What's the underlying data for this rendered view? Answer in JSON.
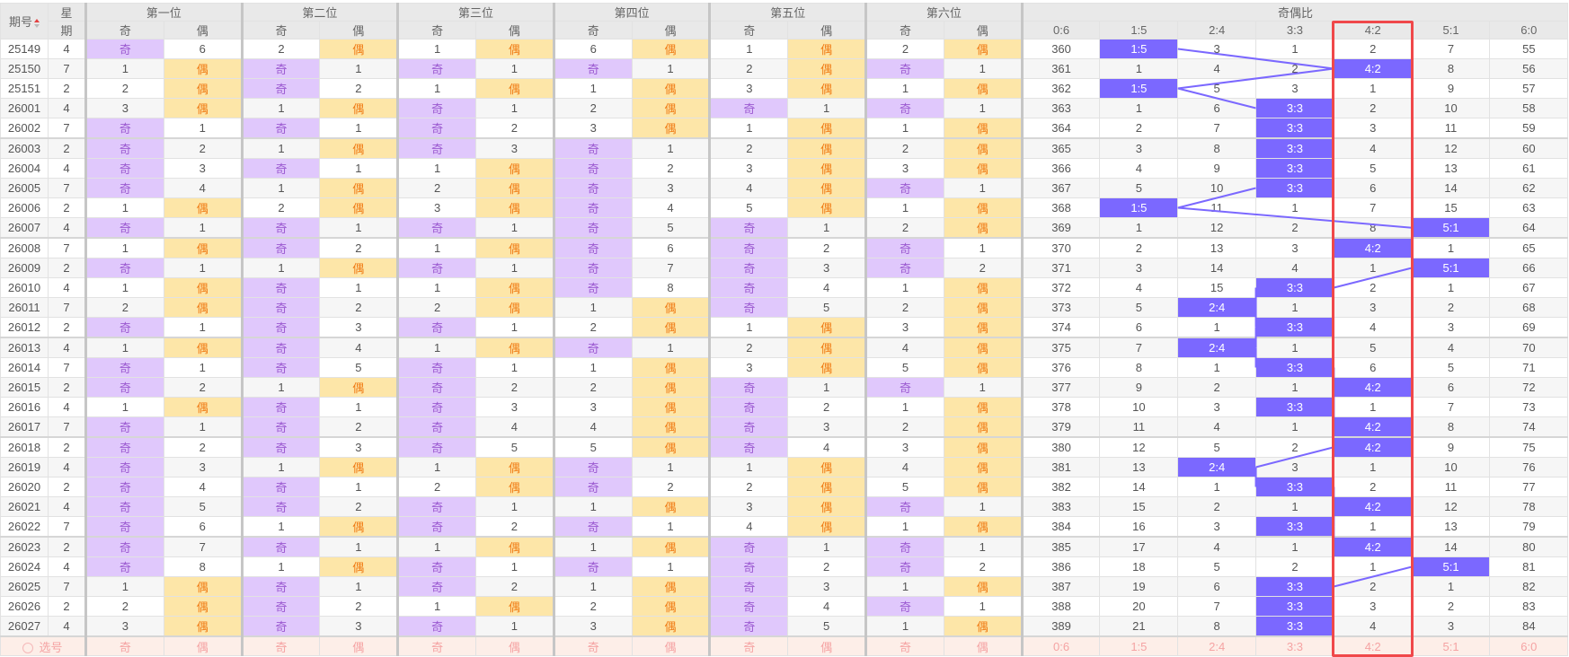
{
  "header": {
    "issue_label": "期号",
    "week_label_top": "星",
    "week_label_bottom": "期",
    "positions": [
      "第一位",
      "第二位",
      "第三位",
      "第四位",
      "第五位",
      "第六位"
    ],
    "odd_label": "奇",
    "even_label": "偶",
    "ratio_group": "奇偶比",
    "ratios": [
      "0:6",
      "1:5",
      "2:4",
      "3:3",
      "4:2",
      "5:1",
      "6:0"
    ]
  },
  "highlighted_ratio_column": "4:2",
  "colors": {
    "odd_bg": "#e0c8fc",
    "odd_text": "#9b59d0",
    "even_bg": "#fde6a8",
    "even_text": "#f07b14",
    "ratio_hit": "#7b68ff",
    "box": "#f0484a"
  },
  "rows": [
    {
      "id": "25149",
      "wk": "4",
      "c": [
        "奇",
        "6",
        "2",
        "偶",
        "1",
        "偶",
        "6",
        "偶",
        "1",
        "偶",
        "2",
        "偶"
      ],
      "r": [
        "360",
        "1:5",
        "3",
        "1",
        "2",
        "7",
        "55"
      ]
    },
    {
      "id": "25150",
      "wk": "7",
      "c": [
        "1",
        "偶",
        "奇",
        "1",
        "奇",
        "1",
        "奇",
        "1",
        "2",
        "偶",
        "奇",
        "1"
      ],
      "r": [
        "361",
        "1",
        "4",
        "2",
        "4:2",
        "8",
        "56"
      ]
    },
    {
      "id": "25151",
      "wk": "2",
      "c": [
        "2",
        "偶",
        "奇",
        "2",
        "1",
        "偶",
        "1",
        "偶",
        "3",
        "偶",
        "1",
        "偶"
      ],
      "r": [
        "362",
        "1:5",
        "5",
        "3",
        "1",
        "9",
        "57"
      ]
    },
    {
      "id": "26001",
      "wk": "4",
      "c": [
        "3",
        "偶",
        "1",
        "偶",
        "奇",
        "1",
        "2",
        "偶",
        "奇",
        "1",
        "奇",
        "1"
      ],
      "r": [
        "363",
        "1",
        "6",
        "3:3",
        "2",
        "10",
        "58"
      ]
    },
    {
      "id": "26002",
      "wk": "7",
      "c": [
        "奇",
        "1",
        "奇",
        "1",
        "奇",
        "2",
        "3",
        "偶",
        "1",
        "偶",
        "1",
        "偶"
      ],
      "r": [
        "364",
        "2",
        "7",
        "3:3",
        "3",
        "11",
        "59"
      ]
    },
    {
      "id": "26003",
      "wk": "2",
      "c": [
        "奇",
        "2",
        "1",
        "偶",
        "奇",
        "3",
        "奇",
        "1",
        "2",
        "偶",
        "2",
        "偶"
      ],
      "r": [
        "365",
        "3",
        "8",
        "3:3",
        "4",
        "12",
        "60"
      ]
    },
    {
      "id": "26004",
      "wk": "4",
      "c": [
        "奇",
        "3",
        "奇",
        "1",
        "1",
        "偶",
        "奇",
        "2",
        "3",
        "偶",
        "3",
        "偶"
      ],
      "r": [
        "366",
        "4",
        "9",
        "3:3",
        "5",
        "13",
        "61"
      ]
    },
    {
      "id": "26005",
      "wk": "7",
      "c": [
        "奇",
        "4",
        "1",
        "偶",
        "2",
        "偶",
        "奇",
        "3",
        "4",
        "偶",
        "奇",
        "1"
      ],
      "r": [
        "367",
        "5",
        "10",
        "3:3",
        "6",
        "14",
        "62"
      ]
    },
    {
      "id": "26006",
      "wk": "2",
      "c": [
        "1",
        "偶",
        "2",
        "偶",
        "3",
        "偶",
        "奇",
        "4",
        "5",
        "偶",
        "1",
        "偶"
      ],
      "r": [
        "368",
        "1:5",
        "11",
        "1",
        "7",
        "15",
        "63"
      ]
    },
    {
      "id": "26007",
      "wk": "4",
      "c": [
        "奇",
        "1",
        "奇",
        "1",
        "奇",
        "1",
        "奇",
        "5",
        "奇",
        "1",
        "2",
        "偶"
      ],
      "r": [
        "369",
        "1",
        "12",
        "2",
        "8",
        "5:1",
        "64"
      ]
    },
    {
      "id": "26008",
      "wk": "7",
      "c": [
        "1",
        "偶",
        "奇",
        "2",
        "1",
        "偶",
        "奇",
        "6",
        "奇",
        "2",
        "奇",
        "1"
      ],
      "r": [
        "370",
        "2",
        "13",
        "3",
        "4:2",
        "1",
        "65"
      ]
    },
    {
      "id": "26009",
      "wk": "2",
      "c": [
        "奇",
        "1",
        "1",
        "偶",
        "奇",
        "1",
        "奇",
        "7",
        "奇",
        "3",
        "奇",
        "2"
      ],
      "r": [
        "371",
        "3",
        "14",
        "4",
        "1",
        "5:1",
        "66"
      ]
    },
    {
      "id": "26010",
      "wk": "4",
      "c": [
        "1",
        "偶",
        "奇",
        "1",
        "1",
        "偶",
        "奇",
        "8",
        "奇",
        "4",
        "1",
        "偶"
      ],
      "r": [
        "372",
        "4",
        "15",
        "3:3",
        "2",
        "1",
        "67"
      ]
    },
    {
      "id": "26011",
      "wk": "7",
      "c": [
        "2",
        "偶",
        "奇",
        "2",
        "2",
        "偶",
        "1",
        "偶",
        "奇",
        "5",
        "2",
        "偶"
      ],
      "r": [
        "373",
        "5",
        "2:4",
        "1",
        "3",
        "2",
        "68"
      ]
    },
    {
      "id": "26012",
      "wk": "2",
      "c": [
        "奇",
        "1",
        "奇",
        "3",
        "奇",
        "1",
        "2",
        "偶",
        "1",
        "偶",
        "3",
        "偶"
      ],
      "r": [
        "374",
        "6",
        "1",
        "3:3",
        "4",
        "3",
        "69"
      ]
    },
    {
      "id": "26013",
      "wk": "4",
      "c": [
        "1",
        "偶",
        "奇",
        "4",
        "1",
        "偶",
        "奇",
        "1",
        "2",
        "偶",
        "4",
        "偶"
      ],
      "r": [
        "375",
        "7",
        "2:4",
        "1",
        "5",
        "4",
        "70"
      ]
    },
    {
      "id": "26014",
      "wk": "7",
      "c": [
        "奇",
        "1",
        "奇",
        "5",
        "奇",
        "1",
        "1",
        "偶",
        "3",
        "偶",
        "5",
        "偶"
      ],
      "r": [
        "376",
        "8",
        "1",
        "3:3",
        "6",
        "5",
        "71"
      ]
    },
    {
      "id": "26015",
      "wk": "2",
      "c": [
        "奇",
        "2",
        "1",
        "偶",
        "奇",
        "2",
        "2",
        "偶",
        "奇",
        "1",
        "奇",
        "1"
      ],
      "r": [
        "377",
        "9",
        "2",
        "1",
        "4:2",
        "6",
        "72"
      ]
    },
    {
      "id": "26016",
      "wk": "4",
      "c": [
        "1",
        "偶",
        "奇",
        "1",
        "奇",
        "3",
        "3",
        "偶",
        "奇",
        "2",
        "1",
        "偶"
      ],
      "r": [
        "378",
        "10",
        "3",
        "3:3",
        "1",
        "7",
        "73"
      ]
    },
    {
      "id": "26017",
      "wk": "7",
      "c": [
        "奇",
        "1",
        "奇",
        "2",
        "奇",
        "4",
        "4",
        "偶",
        "奇",
        "3",
        "2",
        "偶"
      ],
      "r": [
        "379",
        "11",
        "4",
        "1",
        "4:2",
        "8",
        "74"
      ]
    },
    {
      "id": "26018",
      "wk": "2",
      "c": [
        "奇",
        "2",
        "奇",
        "3",
        "奇",
        "5",
        "5",
        "偶",
        "奇",
        "4",
        "3",
        "偶"
      ],
      "r": [
        "380",
        "12",
        "5",
        "2",
        "4:2",
        "9",
        "75"
      ]
    },
    {
      "id": "26019",
      "wk": "4",
      "c": [
        "奇",
        "3",
        "1",
        "偶",
        "1",
        "偶",
        "奇",
        "1",
        "1",
        "偶",
        "4",
        "偶"
      ],
      "r": [
        "381",
        "13",
        "2:4",
        "3",
        "1",
        "10",
        "76"
      ]
    },
    {
      "id": "26020",
      "wk": "2",
      "c": [
        "奇",
        "4",
        "奇",
        "1",
        "2",
        "偶",
        "奇",
        "2",
        "2",
        "偶",
        "5",
        "偶"
      ],
      "r": [
        "382",
        "14",
        "1",
        "3:3",
        "2",
        "11",
        "77"
      ]
    },
    {
      "id": "26021",
      "wk": "4",
      "c": [
        "奇",
        "5",
        "奇",
        "2",
        "奇",
        "1",
        "1",
        "偶",
        "3",
        "偶",
        "奇",
        "1"
      ],
      "r": [
        "383",
        "15",
        "2",
        "1",
        "4:2",
        "12",
        "78"
      ]
    },
    {
      "id": "26022",
      "wk": "7",
      "c": [
        "奇",
        "6",
        "1",
        "偶",
        "奇",
        "2",
        "奇",
        "1",
        "4",
        "偶",
        "1",
        "偶"
      ],
      "r": [
        "384",
        "16",
        "3",
        "3:3",
        "1",
        "13",
        "79"
      ]
    },
    {
      "id": "26023",
      "wk": "2",
      "c": [
        "奇",
        "7",
        "奇",
        "1",
        "1",
        "偶",
        "1",
        "偶",
        "奇",
        "1",
        "奇",
        "1"
      ],
      "r": [
        "385",
        "17",
        "4",
        "1",
        "4:2",
        "14",
        "80"
      ]
    },
    {
      "id": "26024",
      "wk": "4",
      "c": [
        "奇",
        "8",
        "1",
        "偶",
        "奇",
        "1",
        "奇",
        "1",
        "奇",
        "2",
        "奇",
        "2"
      ],
      "r": [
        "386",
        "18",
        "5",
        "2",
        "1",
        "5:1",
        "81"
      ]
    },
    {
      "id": "26025",
      "wk": "7",
      "c": [
        "1",
        "偶",
        "奇",
        "1",
        "奇",
        "2",
        "1",
        "偶",
        "奇",
        "3",
        "1",
        "偶"
      ],
      "r": [
        "387",
        "19",
        "6",
        "3:3",
        "2",
        "1",
        "82"
      ]
    },
    {
      "id": "26026",
      "wk": "2",
      "c": [
        "2",
        "偶",
        "奇",
        "2",
        "1",
        "偶",
        "2",
        "偶",
        "奇",
        "4",
        "奇",
        "1"
      ],
      "r": [
        "388",
        "20",
        "7",
        "3:3",
        "3",
        "2",
        "83"
      ]
    },
    {
      "id": "26027",
      "wk": "4",
      "c": [
        "3",
        "偶",
        "奇",
        "3",
        "奇",
        "1",
        "3",
        "偶",
        "奇",
        "5",
        "1",
        "偶"
      ],
      "r": [
        "389",
        "21",
        "8",
        "3:3",
        "4",
        "3",
        "84"
      ]
    }
  ],
  "footer": {
    "select_label": "选号",
    "cells": [
      "奇",
      "偶",
      "奇",
      "偶",
      "奇",
      "偶",
      "奇",
      "偶",
      "奇",
      "偶",
      "奇",
      "偶"
    ],
    "ratios": [
      "0:6",
      "1:5",
      "2:4",
      "3:3",
      "4:2",
      "5:1",
      "6:0"
    ]
  }
}
